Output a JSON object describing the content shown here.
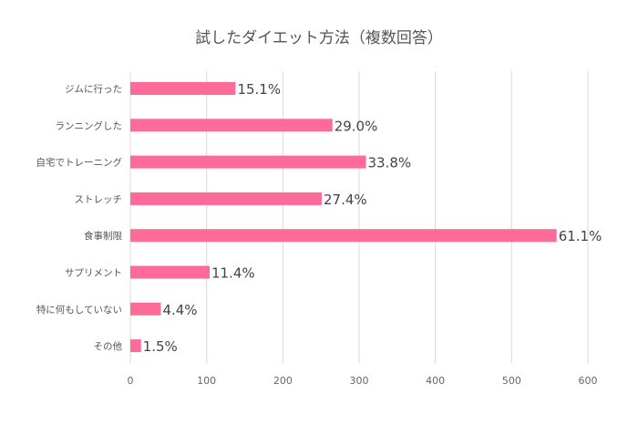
{
  "chart_data": {
    "type": "bar",
    "orientation": "horizontal",
    "title": "試したダイエット方法（複数回答）",
    "categories": [
      "ジムに行った",
      "ランニングした",
      "自宅でトレーニング",
      "ストレッチ",
      "食事制限",
      "サプリメント",
      "特に何もしていない",
      "その他"
    ],
    "values": [
      138,
      265,
      309,
      251,
      559,
      104,
      40,
      14
    ],
    "data_labels": [
      "15.1%",
      "29.0%",
      "33.8%",
      "27.4%",
      "61.1%",
      "11.4%",
      "4.4%",
      "1.5%"
    ],
    "xlim": [
      0,
      600
    ],
    "x_ticks": [
      0,
      100,
      200,
      300,
      400,
      500,
      600
    ],
    "x_tick_labels": [
      "0",
      "100",
      "200",
      "300",
      "400",
      "500",
      "600"
    ],
    "grid": true,
    "legend": "none",
    "bar_color": "#ff6b98"
  }
}
